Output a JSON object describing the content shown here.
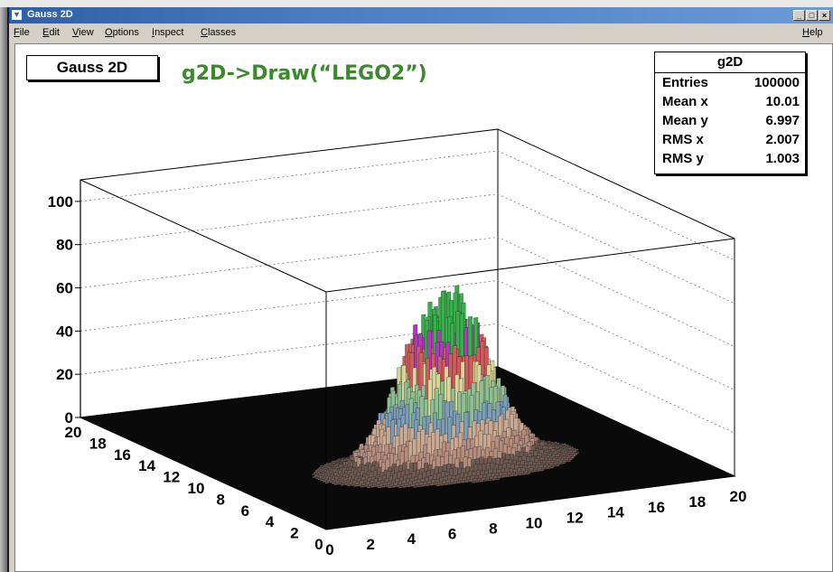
{
  "window": {
    "title": "Gauss 2D",
    "menu": [
      "File",
      "Edit",
      "View",
      "Options",
      "Inspect",
      "Classes"
    ],
    "help": "Help"
  },
  "canvas": {
    "title_box": "Gauss 2D",
    "command_text": "g2D->Draw(“LEGO2”)"
  },
  "stats": {
    "name": "g2D",
    "rows": [
      {
        "label": "Entries",
        "value": "100000"
      },
      {
        "label": "Mean x",
        "value": "10.01"
      },
      {
        "label": "Mean y",
        "value": "6.997"
      },
      {
        "label": "RMS x",
        "value": "2.007"
      },
      {
        "label": "RMS y",
        "value": "1.003"
      }
    ]
  },
  "chart_data": {
    "type": "lego",
    "z_ticks": [
      "0",
      "20",
      "40",
      "60",
      "80",
      "100"
    ],
    "x_ticks": [
      "0",
      "2",
      "4",
      "6",
      "8",
      "10",
      "12",
      "14",
      "16",
      "18",
      "20"
    ],
    "y_ticks": [
      "0",
      "2",
      "4",
      "6",
      "8",
      "10",
      "12",
      "14",
      "16",
      "18",
      "20"
    ],
    "x_range": [
      0,
      20
    ],
    "y_range": [
      0,
      20
    ],
    "z_range": [
      0,
      110
    ],
    "mean_x": 10.01,
    "mean_y": 6.997,
    "rms_x": 2.007,
    "rms_y": 1.003,
    "peak_value": 75,
    "color_bands": [
      "#6e5a52",
      "#b58d7e",
      "#c9a992",
      "#7b9db5",
      "#8fbf90",
      "#d8d59a",
      "#cf5c5c",
      "#b03ab8",
      "#36b04a"
    ]
  }
}
